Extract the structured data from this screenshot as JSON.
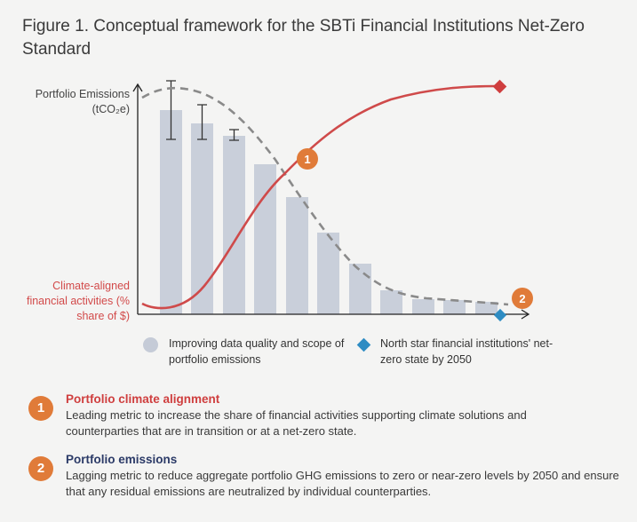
{
  "figure": {
    "title": "Figure 1. Conceptual framework for the SBTi Financial Institutions Net-Zero Standard"
  },
  "chart": {
    "y_label_emissions": "Portfolio Emissions (tCO₂e)",
    "y_label_alignment": "Climate-aligned financial activities (% share of $)",
    "marker_1": "1",
    "marker_2": "2"
  },
  "legend": {
    "item_data_quality": "Improving data quality and scope of portfolio emissions",
    "item_north_star": "North star financial institutions' net-zero state by 2050"
  },
  "notes": [
    {
      "number": "1",
      "heading": "Portfolio climate alignment",
      "text": "Leading metric to increase the share of financial activities supporting climate solutions and counterparties that are in transition or at a net-zero state."
    },
    {
      "number": "2",
      "heading": "Portfolio emissions",
      "text": "Lagging metric to reduce aggregate portfolio GHG emissions to zero or near-zero levels by 2050 and ensure that any residual emissions are neutralized by individual counterparties."
    }
  ],
  "colors": {
    "bar": "#c9cfda",
    "alignment_curve": "#cf4a4a",
    "emissions_trend": "#8a8a8a",
    "badge": "#e07b39",
    "north_star": "#2e8cc3",
    "note_1_heading": "#cf3e3e",
    "note_2_heading": "#2b3a67"
  }
}
